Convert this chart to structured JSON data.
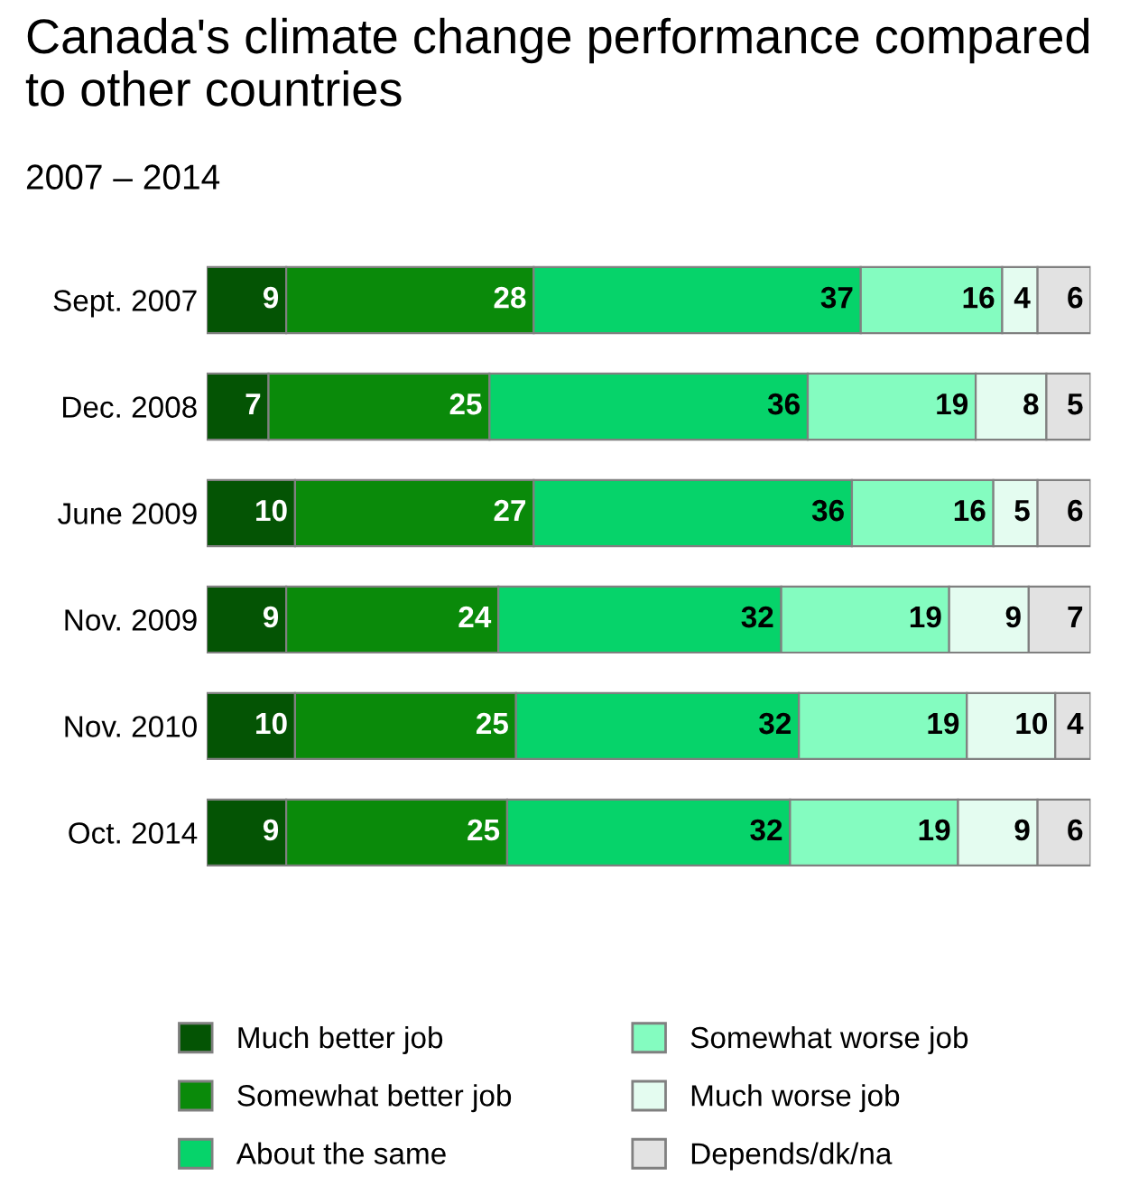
{
  "chart_data": {
    "type": "bar",
    "orientation": "horizontal",
    "stacked": true,
    "data_labels": true,
    "legend": "bottom",
    "grid": false,
    "title": "Canada's climate change performance compared to other countries",
    "subtitle": "2007 – 2014",
    "categories": [
      "Sept. 2007",
      "Dec. 2008",
      "June 2009",
      "Nov. 2009",
      "Nov. 2010",
      "Oct. 2014"
    ],
    "series": [
      {
        "name": "Much better job",
        "color": "#045404",
        "values": [
          9,
          7,
          10,
          9,
          10,
          9
        ]
      },
      {
        "name": "Somewhat better job",
        "color": "#0a8a0a",
        "values": [
          28,
          25,
          27,
          24,
          25,
          25
        ]
      },
      {
        "name": "About the same",
        "color": "#06d36a",
        "values": [
          37,
          36,
          36,
          32,
          32,
          32
        ]
      },
      {
        "name": "Somewhat worse job",
        "color": "#84fcc0",
        "values": [
          16,
          19,
          16,
          19,
          19,
          19
        ]
      },
      {
        "name": "Much worse job",
        "color": "#e4fcf0",
        "values": [
          4,
          8,
          5,
          9,
          10,
          9
        ]
      },
      {
        "name": "Depends/dk/na",
        "color": "#e2e2e2",
        "values": [
          6,
          5,
          6,
          7,
          4,
          6
        ]
      }
    ]
  }
}
